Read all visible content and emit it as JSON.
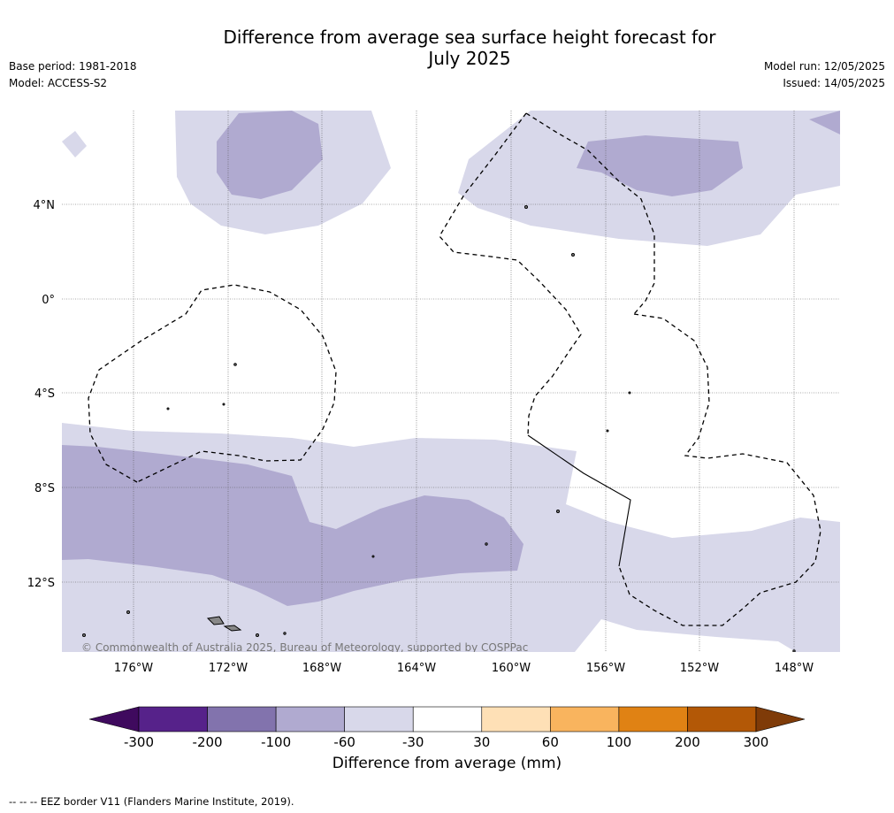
{
  "title_line1": "Difference from average sea surface height forecast for",
  "title_line2": "July 2025",
  "base_period": "Base period: 1981-2018",
  "model": "Model: ACCESS-S2",
  "model_run": "Model run: 12/05/2025",
  "issued": "Issued: 14/05/2025",
  "copyright": "© Commonwealth of Australia 2025, Bureau of Meteorology, supported by COSPPac",
  "lat_labels": [
    "4°N",
    "0°",
    "4°S",
    "8°S",
    "12°S"
  ],
  "lon_labels": [
    "176°W",
    "172°W",
    "168°W",
    "164°W",
    "160°W",
    "156°W",
    "152°W",
    "148°W"
  ],
  "colorbar": {
    "ticks": [
      "-300",
      "-200",
      "-100",
      "-60",
      "-30",
      "30",
      "60",
      "100",
      "200",
      "300"
    ],
    "colors": [
      "#3f0a5e",
      "#56228a",
      "#8273ad",
      "#b0aad0",
      "#d8d8ea",
      "#ffffff",
      "#fee0b6",
      "#f9b45e",
      "#e08214",
      "#b35806",
      "#7f3b08"
    ],
    "label": "Difference from average (mm)"
  },
  "footnote": "--  --  -- EEZ border V11 (Flanders Marine Institute, 2019)."
}
